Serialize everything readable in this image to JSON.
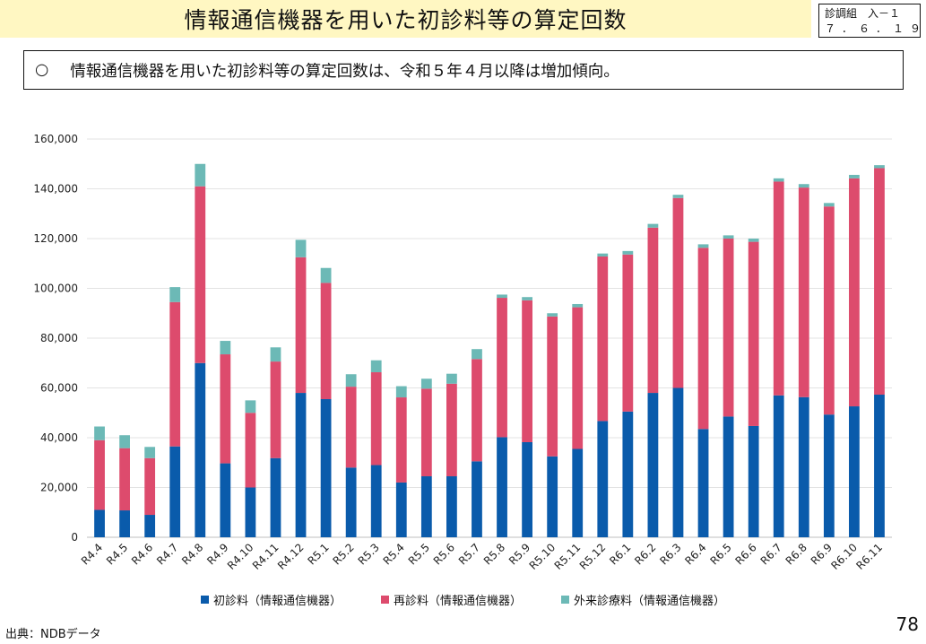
{
  "header": {
    "title": "情報通信機器を用いた初診料等の算定回数",
    "doc_tag_line1": "診調組　入－１",
    "doc_tag_line2": "７．６．１９"
  },
  "summary": {
    "bullet": "○",
    "text": "情報通信機器を用いた初診料等の算定回数は、令和５年４月以降は増加傾向。"
  },
  "chart_data": {
    "type": "bar",
    "stacked": true,
    "grid": true,
    "legend_position": "bottom",
    "ylim": [
      0,
      160000
    ],
    "yticks": [
      0,
      20000,
      40000,
      60000,
      80000,
      100000,
      120000,
      140000,
      160000
    ],
    "ytick_labels": [
      "0",
      "20,000",
      "40,000",
      "60,000",
      "80,000",
      "100,000",
      "120,000",
      "140,000",
      "160,000"
    ],
    "categories": [
      "R4.4",
      "R4.5",
      "R4.6",
      "R4.7",
      "R4.8",
      "R4.9",
      "R4.10",
      "R4.11",
      "R4.12",
      "R5.1",
      "R5.2",
      "R5.3",
      "R5.4",
      "R5.5",
      "R5.6",
      "R5.7",
      "R5.8",
      "R5.9",
      "R5.10",
      "R5.11",
      "R5.12",
      "R6.1",
      "R6.2",
      "R6.3",
      "R6.4",
      "R6.5",
      "R6.6",
      "R6.7",
      "R6.8",
      "R6.9",
      "R6.10",
      "R6.11"
    ],
    "series": [
      {
        "name": "初診料（情報通信機器）",
        "color": "#0a5bab",
        "values": [
          11000,
          10800,
          9000,
          36500,
          70000,
          29700,
          20000,
          31800,
          58000,
          55500,
          28000,
          29000,
          22000,
          24500,
          24500,
          30500,
          40200,
          38200,
          32500,
          35500,
          46700,
          50500,
          58000,
          60000,
          43500,
          48500,
          44700,
          57000,
          56300,
          49300,
          52600,
          57300
        ]
      },
      {
        "name": "再診料（情報通信機器）",
        "color": "#dd4b6d",
        "values": [
          28000,
          25000,
          22800,
          58000,
          71000,
          43800,
          30000,
          38800,
          54500,
          46700,
          32500,
          37300,
          34200,
          35200,
          37200,
          41100,
          56000,
          57000,
          56200,
          56900,
          66100,
          63100,
          66400,
          76300,
          72800,
          71500,
          74000,
          85900,
          84200,
          83600,
          91600,
          91000
        ]
      },
      {
        "name": "外来診療料（情報通信機器）",
        "color": "#6cb9b6",
        "values": [
          5500,
          5200,
          4500,
          6000,
          9000,
          5400,
          5000,
          5700,
          7000,
          6000,
          5000,
          4800,
          4500,
          4000,
          4000,
          4000,
          1300,
          1300,
          1300,
          1300,
          1200,
          1400,
          1500,
          1300,
          1400,
          1300,
          1300,
          1300,
          1400,
          1400,
          1400,
          1200
        ]
      }
    ]
  },
  "footer": {
    "source": "出典：NDBデータ",
    "page_number": "78"
  }
}
